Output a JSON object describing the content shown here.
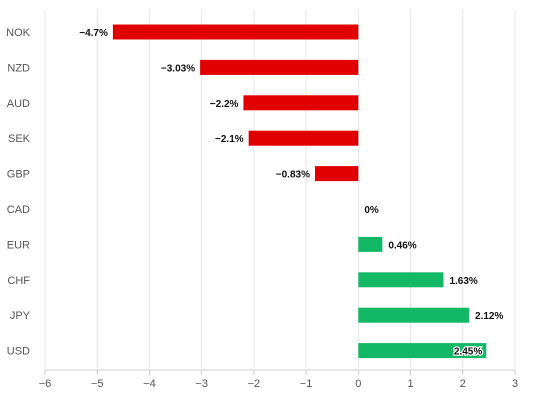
{
  "chart_data": {
    "type": "bar",
    "orientation": "horizontal",
    "categories": [
      "NOK",
      "NZD",
      "AUD",
      "SEK",
      "GBP",
      "CAD",
      "EUR",
      "CHF",
      "JPY",
      "USD"
    ],
    "values": [
      -4.7,
      -3.03,
      -2.2,
      -2.1,
      -0.83,
      0,
      0.46,
      1.63,
      2.12,
      2.45
    ],
    "value_labels": [
      "−4.7%",
      "−3.03%",
      "−2.2%",
      "−2.1%",
      "−0.83%",
      "0%",
      "0.46%",
      "1.63%",
      "2.12%",
      "2.45%"
    ],
    "x_ticks": [
      -6,
      -5,
      -4,
      -3,
      -2,
      -1,
      0,
      1,
      2,
      3
    ],
    "x_tick_labels": [
      "−6",
      "−5",
      "−4",
      "−3",
      "−2",
      "−1",
      "0",
      "1",
      "2",
      "3"
    ],
    "xlim": [
      -6,
      3
    ],
    "grid": true,
    "colors": {
      "negative": "#e00000",
      "positive": "#12b866",
      "grid": "#e6e6e6",
      "axis": "#cccccc"
    },
    "title": "",
    "xlabel": "",
    "ylabel": ""
  }
}
